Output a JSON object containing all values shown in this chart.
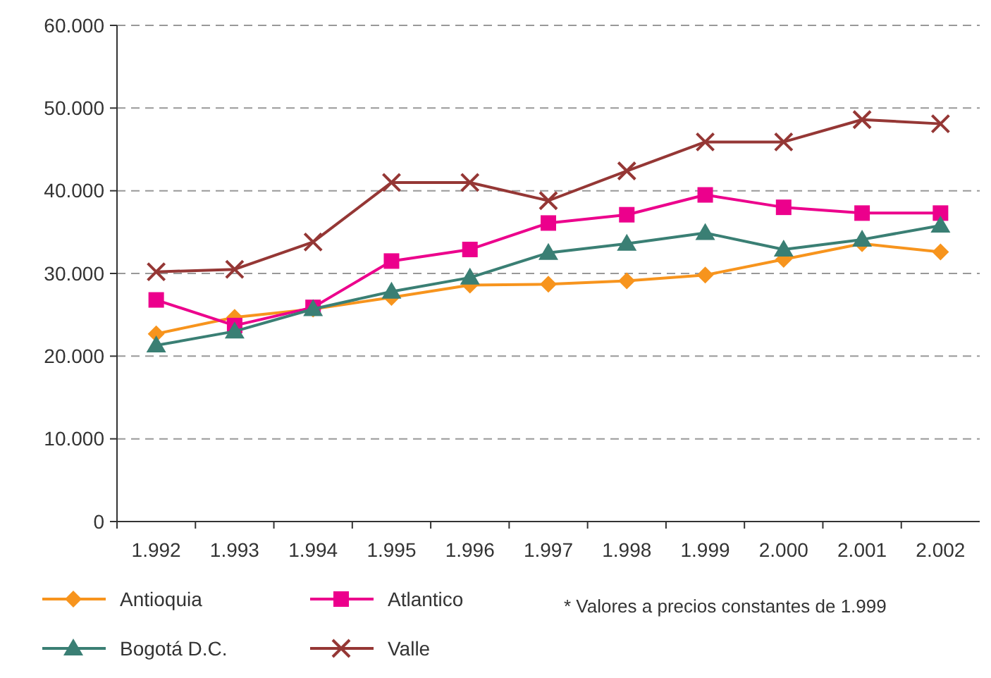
{
  "chart_data": {
    "type": "line",
    "categories": [
      "1.992",
      "1.993",
      "1.994",
      "1.995",
      "1.996",
      "1.997",
      "1.998",
      "1.999",
      "2.000",
      "2.001",
      "2.002"
    ],
    "series": [
      {
        "name": "Antioquia",
        "color": "#f7941d",
        "marker": "diamond",
        "values": [
          22700,
          24700,
          25700,
          27100,
          28600,
          28700,
          29100,
          29800,
          31700,
          33600,
          32600
        ]
      },
      {
        "name": "Atlantico",
        "color": "#ec008c",
        "marker": "square",
        "values": [
          26800,
          23700,
          25900,
          31500,
          32900,
          36100,
          37100,
          39500,
          38000,
          37300,
          37300
        ]
      },
      {
        "name": "Bogotá D.C.",
        "color": "#3a7f74",
        "marker": "triangle",
        "values": [
          21300,
          23000,
          25700,
          27800,
          29500,
          32500,
          33600,
          34900,
          32900,
          34100,
          35800
        ]
      },
      {
        "name": "Valle",
        "color": "#953735",
        "marker": "cross",
        "values": [
          30200,
          30500,
          33800,
          41000,
          41000,
          38800,
          42400,
          45900,
          45900,
          48600,
          48100
        ]
      }
    ],
    "ylim": [
      0,
      60000
    ],
    "yticks": [
      0,
      {
        "value": 10000,
        "label": "10.000"
      },
      {
        "value": 20000,
        "label": "20.000"
      },
      {
        "value": 30000,
        "label": "30.000"
      },
      {
        "value": 40000,
        "label": "40.000"
      },
      {
        "value": 50000,
        "label": "50.000"
      },
      {
        "value": 60000,
        "label": "60.000"
      }
    ],
    "grid": "y",
    "legend": "bottom",
    "annotations": [
      "* Valores a precios constantes de 1.999"
    ]
  }
}
